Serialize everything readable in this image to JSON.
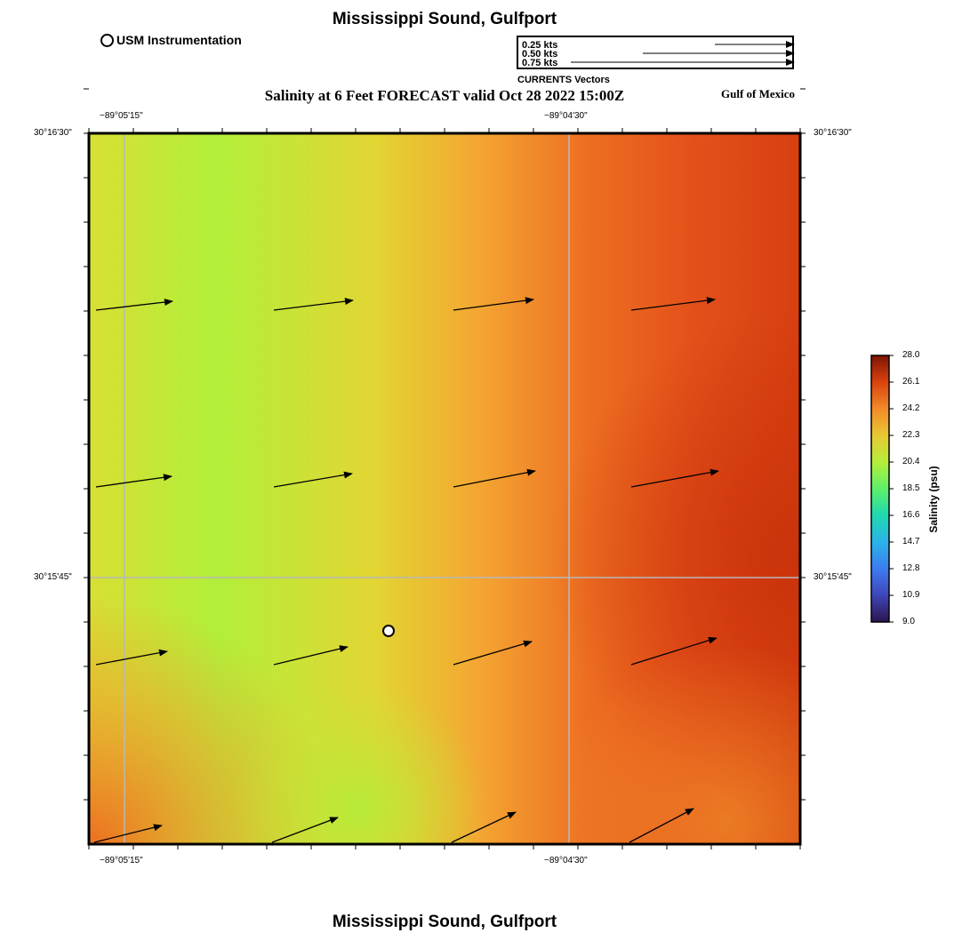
{
  "title": "Mississippi Sound, Gulfport",
  "subtitle": "Salinity at 6 Feet FORECAST valid Oct 28 2022 15:00Z",
  "bottom_title": "Mississippi Sound, Gulfport",
  "station_legend": "USM Instrumentation",
  "region_label": "Gulf of Mexico",
  "vector_legend": {
    "labels": [
      "0.25 kts",
      "0.50 kts",
      "0.75 kts"
    ],
    "caption": "CURRENTS Vectors"
  },
  "axes": {
    "lon_labels": [
      "−89°05'15\"",
      "−89°04'30\""
    ],
    "lat_labels": [
      "30°16'30\"",
      "30°15'45\""
    ]
  },
  "colorbar": {
    "title": "Salinity (psu)",
    "ticks": [
      "28.0",
      "26.1",
      "24.2",
      "22.3",
      "20.4",
      "18.5",
      "16.6",
      "14.7",
      "12.8",
      "10.9",
      "9.0"
    ]
  },
  "colors": {
    "green": "#b0f23a",
    "yellow": "#e4d232",
    "orange": "#f39430",
    "red_orange": "#e85418",
    "dark_red": "#cc3306"
  }
}
